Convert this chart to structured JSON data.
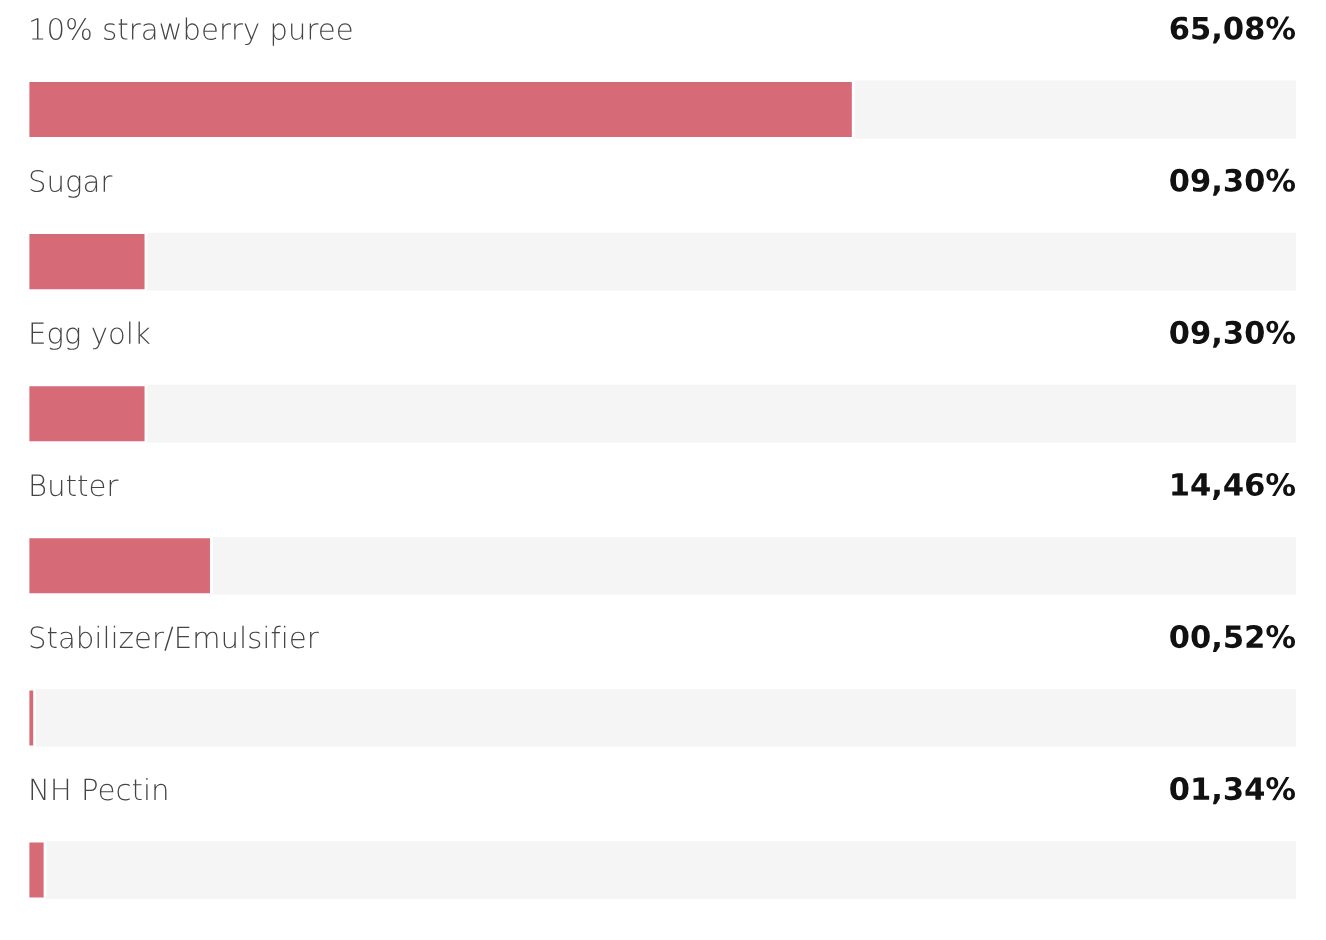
{
  "chart_data": {
    "type": "bar",
    "orientation": "horizontal",
    "categories": [
      "10% strawberry puree",
      "Sugar",
      "Egg yolk",
      "Butter",
      "Stabilizer/Emulsifier",
      "NH Pectin"
    ],
    "values": [
      65.08,
      9.3,
      9.3,
      14.46,
      0.52,
      1.34
    ],
    "value_labels": [
      "65,08%",
      "09,30%",
      "09,30%",
      "14,46%",
      "00,52%",
      "01,34%"
    ],
    "color": "#d66a76",
    "xlim": [
      0,
      100
    ]
  }
}
